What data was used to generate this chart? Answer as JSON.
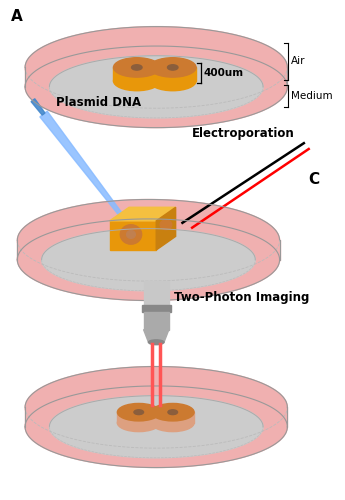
{
  "title_A": "A",
  "title_C": "C",
  "label_400um": "400um",
  "label_air": "Air",
  "label_medium": "Medium",
  "label_plasmid": "Plasmid DNA",
  "label_electro": "Electroporation",
  "label_imaging": "Two-Photon Imaging",
  "bg_color": "#ffffff",
  "dish_pink": "#f0b0b0",
  "dish_pink2": "#e89898",
  "dish_gray": "#cccccc",
  "dish_outline": "#aaaaaa",
  "tissue_orange": "#e8970a",
  "tissue_gold": "#f5c040",
  "tissue_copper": "#cc7a30",
  "tissue_dark": "#8B5E3C",
  "obj_light": "#c8c8c8",
  "obj_mid": "#aaaaaa",
  "obj_dark": "#888888",
  "beam_red": "#ff5555",
  "blue_beam": "#88bbff",
  "blue_dark": "#4488cc"
}
